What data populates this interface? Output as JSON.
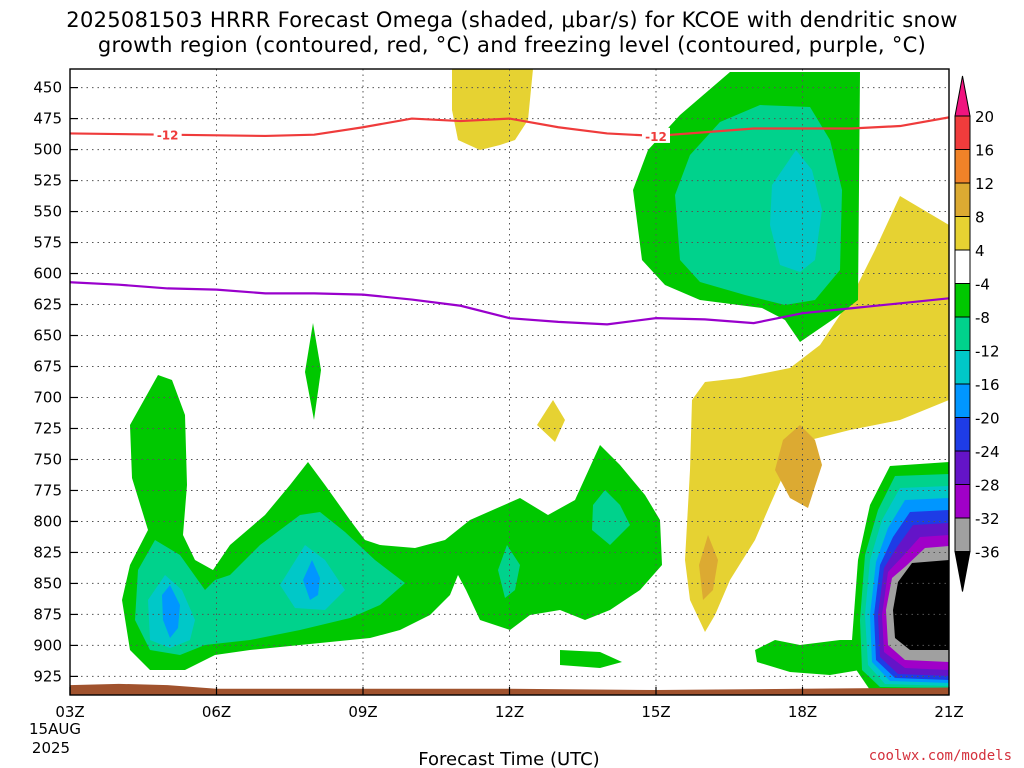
{
  "title_line1": "2025081503 HRRR Forecast Omega (shaded, μbar/s) for KCOE with dendritic snow",
  "title_line2": "growth region (contoured, red, °C) and freezing level (contoured, purple, °C)",
  "credit": "coolwx.com/models",
  "chart_data": {
    "type": "heatmap",
    "title": "2025081503 HRRR Forecast Omega (shaded, μbar/s) for KCOE with dendritic snow growth region (contoured, red, °C) and freezing level (contoured, purple, °C)",
    "xlabel": "Forecast Time (UTC)",
    "ylabel": "",
    "x_ticks": [
      {
        "hour": 3,
        "label": "03Z"
      },
      {
        "hour": 6,
        "label": "06Z"
      },
      {
        "hour": 9,
        "label": "09Z"
      },
      {
        "hour": 12,
        "label": "12Z"
      },
      {
        "hour": 15,
        "label": "15Z"
      },
      {
        "hour": 18,
        "label": "18Z"
      },
      {
        "hour": 21,
        "label": "21Z"
      }
    ],
    "x_date_line1": "15AUG",
    "x_date_line2": "2025",
    "xlim": [
      3,
      21
    ],
    "y_axis": "pressure (hPa), inverted",
    "ylim": [
      940,
      435
    ],
    "y_ticks": [
      450,
      475,
      500,
      525,
      550,
      575,
      600,
      625,
      650,
      675,
      700,
      725,
      750,
      775,
      800,
      825,
      850,
      875,
      900,
      925
    ],
    "grid": true,
    "colorbar": {
      "labels": [
        20,
        16,
        12,
        8,
        4,
        -4,
        -8,
        -12,
        -16,
        -20,
        -24,
        -28,
        -32,
        -36
      ],
      "colors": [
        "#f0147f",
        "#f03c3c",
        "#f08228",
        "#dcaa32",
        "#e6d232",
        "#ffffff",
        "#00c800",
        "#00d28c",
        "#00c8c8",
        "#0096ff",
        "#1e3ce6",
        "#6414c8",
        "#a000c8",
        "#a0a0a0",
        "#000000"
      ]
    },
    "contours": [
      {
        "name": "-12 °C",
        "color": "#ef3b3b",
        "label": "-12",
        "points": [
          [
            3,
            487
          ],
          [
            5,
            488
          ],
          [
            7,
            489
          ],
          [
            8,
            488
          ],
          [
            9,
            482
          ],
          [
            10,
            475
          ],
          [
            11,
            477
          ],
          [
            12,
            475
          ],
          [
            13,
            482
          ],
          [
            14,
            487
          ],
          [
            15,
            489
          ],
          [
            16,
            486
          ],
          [
            17,
            483
          ],
          [
            18,
            483
          ],
          [
            19,
            483
          ],
          [
            20,
            481
          ],
          [
            21,
            474
          ]
        ]
      },
      {
        "name": "0 °C",
        "color": "#9900cc",
        "label": "",
        "points": [
          [
            3,
            607
          ],
          [
            4,
            609
          ],
          [
            5,
            612
          ],
          [
            6,
            613
          ],
          [
            7,
            616
          ],
          [
            8,
            616
          ],
          [
            9,
            617
          ],
          [
            10,
            621
          ],
          [
            11,
            626
          ],
          [
            12,
            636
          ],
          [
            13,
            639
          ],
          [
            14,
            641
          ],
          [
            15,
            636
          ],
          [
            16,
            637
          ],
          [
            17,
            640
          ],
          [
            18,
            632
          ],
          [
            19,
            628
          ],
          [
            20,
            624
          ],
          [
            21,
            620
          ]
        ]
      }
    ],
    "terrain_pressure": [
      [
        3,
        932
      ],
      [
        4,
        931
      ],
      [
        5,
        932
      ],
      [
        6,
        935
      ],
      [
        9,
        935
      ],
      [
        12,
        935
      ],
      [
        15,
        936
      ],
      [
        18,
        935
      ],
      [
        21,
        934
      ]
    ]
  }
}
